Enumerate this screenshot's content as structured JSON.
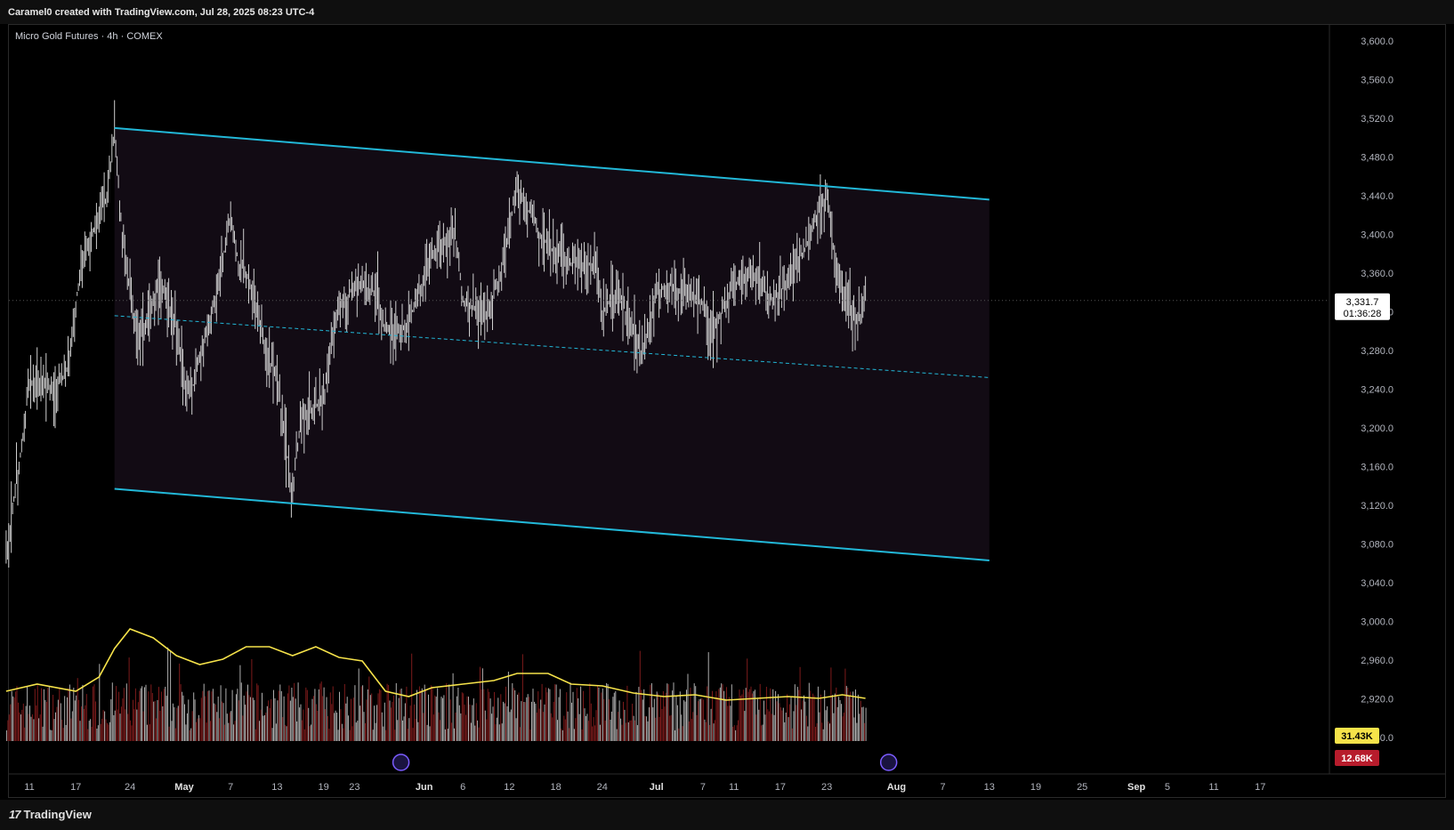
{
  "header": {
    "attribution": "Caramel0 created with TradingView.com, Jul 28, 2025 08:23 UTC-4"
  },
  "symbol": {
    "label": "Micro Gold Futures · 4h · COMEX"
  },
  "branding": {
    "logo_text": "TradingView"
  },
  "chart_data": {
    "type": "candlestick",
    "title": "Micro Gold Futures · 4h · COMEX",
    "xlabel": "",
    "ylabel": "",
    "ylim": [
      2860,
      3620
    ],
    "y_ticks": [
      "3,600.0",
      "3,560.0",
      "3,520.0",
      "3,480.0",
      "3,440.0",
      "3,400.0",
      "3,360.0",
      "3,320.0",
      "3,280.0",
      "3,240.0",
      "3,200.0",
      "3,160.0",
      "3,120.0",
      "3,080.0",
      "3,040.0",
      "3,000.0",
      "2,960.0",
      "2,920.0",
      "2,880.0"
    ],
    "y_tick_values": [
      3600,
      3560,
      3520,
      3480,
      3440,
      3400,
      3360,
      3320,
      3280,
      3240,
      3200,
      3160,
      3120,
      3080,
      3040,
      3000,
      2960,
      2920,
      2880
    ],
    "x_ticks": [
      "11",
      "17",
      "24",
      "May",
      "7",
      "13",
      "19",
      "23",
      "Jun",
      "6",
      "12",
      "18",
      "24",
      "Jul",
      "7",
      "11",
      "17",
      "23",
      "Aug",
      "7",
      "13",
      "19",
      "25",
      "Sep",
      "5",
      "11",
      "17"
    ],
    "x_tick_dates": [
      "2025-04-11",
      "2025-04-17",
      "2025-04-24",
      "2025-05-01",
      "2025-05-07",
      "2025-05-13",
      "2025-05-19",
      "2025-05-23",
      "2025-06-01",
      "2025-06-06",
      "2025-06-12",
      "2025-06-18",
      "2025-06-24",
      "2025-07-01",
      "2025-07-07",
      "2025-07-11",
      "2025-07-17",
      "2025-07-23",
      "2025-08-01",
      "2025-08-07",
      "2025-08-13",
      "2025-08-19",
      "2025-08-25",
      "2025-09-01",
      "2025-09-05",
      "2025-09-11",
      "2025-09-17"
    ],
    "price_path": [
      [
        "2025-04-08",
        3070
      ],
      [
        "2025-04-10",
        3180
      ],
      [
        "2025-04-11",
        3250
      ],
      [
        "2025-04-14",
        3240
      ],
      [
        "2025-04-16",
        3260
      ],
      [
        "2025-04-17",
        3330
      ],
      [
        "2025-04-18",
        3380
      ],
      [
        "2025-04-21",
        3440
      ],
      [
        "2025-04-22",
        3505
      ],
      [
        "2025-04-23",
        3400
      ],
      [
        "2025-04-24",
        3340
      ],
      [
        "2025-04-25",
        3290
      ],
      [
        "2025-04-28",
        3350
      ],
      [
        "2025-04-30",
        3300
      ],
      [
        "2025-05-01",
        3250
      ],
      [
        "2025-05-02",
        3240
      ],
      [
        "2025-05-05",
        3330
      ],
      [
        "2025-05-07",
        3420
      ],
      [
        "2025-05-08",
        3370
      ],
      [
        "2025-05-09",
        3360
      ],
      [
        "2025-05-12",
        3270
      ],
      [
        "2025-05-13",
        3250
      ],
      [
        "2025-05-14",
        3190
      ],
      [
        "2025-05-15",
        3130
      ],
      [
        "2025-05-16",
        3210
      ],
      [
        "2025-05-19",
        3230
      ],
      [
        "2025-05-20",
        3290
      ],
      [
        "2025-05-21",
        3320
      ],
      [
        "2025-05-23",
        3350
      ],
      [
        "2025-05-26",
        3340
      ],
      [
        "2025-05-27",
        3300
      ],
      [
        "2025-05-29",
        3300
      ],
      [
        "2025-05-30",
        3310
      ],
      [
        "2025-06-02",
        3380
      ],
      [
        "2025-06-04",
        3395
      ],
      [
        "2025-06-05",
        3400
      ],
      [
        "2025-06-06",
        3330
      ],
      [
        "2025-06-09",
        3320
      ],
      [
        "2025-06-11",
        3360
      ],
      [
        "2025-06-12",
        3410
      ],
      [
        "2025-06-13",
        3450
      ],
      [
        "2025-06-16",
        3400
      ],
      [
        "2025-06-18",
        3380
      ],
      [
        "2025-06-20",
        3370
      ],
      [
        "2025-06-23",
        3370
      ],
      [
        "2025-06-24",
        3320
      ],
      [
        "2025-06-26",
        3340
      ],
      [
        "2025-06-29",
        3280
      ],
      [
        "2025-06-30",
        3300
      ],
      [
        "2025-07-01",
        3340
      ],
      [
        "2025-07-03",
        3350
      ],
      [
        "2025-07-04",
        3340
      ],
      [
        "2025-07-07",
        3330
      ],
      [
        "2025-07-08",
        3300
      ],
      [
        "2025-07-09",
        3310
      ],
      [
        "2025-07-11",
        3350
      ],
      [
        "2025-07-14",
        3360
      ],
      [
        "2025-07-15",
        3340
      ],
      [
        "2025-07-16",
        3330
      ],
      [
        "2025-07-17",
        3340
      ],
      [
        "2025-07-18",
        3350
      ],
      [
        "2025-07-21",
        3400
      ],
      [
        "2025-07-22",
        3430
      ],
      [
        "2025-07-23",
        3440
      ],
      [
        "2025-07-24",
        3380
      ],
      [
        "2025-07-25",
        3340
      ],
      [
        "2025-07-27",
        3310
      ],
      [
        "2025-07-28",
        3331.7
      ]
    ],
    "last_price_label": "3,331.7",
    "countdown_label": "01:36:28",
    "drawing": {
      "type": "regression_channel",
      "upper": [
        [
          "2025-04-22",
          3510
        ],
        [
          "2025-08-13",
          3436
        ]
      ],
      "middle": [
        [
          "2025-04-22",
          3316
        ],
        [
          "2025-08-13",
          3252
        ]
      ],
      "lower": [
        [
          "2025-04-22",
          3137
        ],
        [
          "2025-08-13",
          3063
        ]
      ],
      "color": "#22b8d8"
    },
    "volume": {
      "ma_label": "31.43K",
      "last_volume_label": "12.68K",
      "ma_color": "#f6e34a",
      "up_color": "#d9d9d9",
      "down_color": "#8b1e1e",
      "ma_path": [
        [
          "2025-04-08",
          0.28
        ],
        [
          "2025-04-12",
          0.32
        ],
        [
          "2025-04-17",
          0.28
        ],
        [
          "2025-04-20",
          0.36
        ],
        [
          "2025-04-22",
          0.52
        ],
        [
          "2025-04-24",
          0.63
        ],
        [
          "2025-04-27",
          0.58
        ],
        [
          "2025-04-30",
          0.48
        ],
        [
          "2025-05-03",
          0.43
        ],
        [
          "2025-05-06",
          0.46
        ],
        [
          "2025-05-09",
          0.53
        ],
        [
          "2025-05-12",
          0.53
        ],
        [
          "2025-05-15",
          0.48
        ],
        [
          "2025-05-18",
          0.53
        ],
        [
          "2025-05-21",
          0.47
        ],
        [
          "2025-05-24",
          0.45
        ],
        [
          "2025-05-27",
          0.28
        ],
        [
          "2025-05-30",
          0.25
        ],
        [
          "2025-06-02",
          0.3
        ],
        [
          "2025-06-06",
          0.32
        ],
        [
          "2025-06-10",
          0.34
        ],
        [
          "2025-06-13",
          0.38
        ],
        [
          "2025-06-17",
          0.38
        ],
        [
          "2025-06-20",
          0.32
        ],
        [
          "2025-06-24",
          0.31
        ],
        [
          "2025-06-28",
          0.27
        ],
        [
          "2025-07-02",
          0.25
        ],
        [
          "2025-07-06",
          0.26
        ],
        [
          "2025-07-10",
          0.23
        ],
        [
          "2025-07-14",
          0.24
        ],
        [
          "2025-07-18",
          0.25
        ],
        [
          "2025-07-22",
          0.24
        ],
        [
          "2025-07-25",
          0.26
        ],
        [
          "2025-07-28",
          0.24
        ]
      ]
    },
    "grid": false,
    "legend": "none"
  }
}
